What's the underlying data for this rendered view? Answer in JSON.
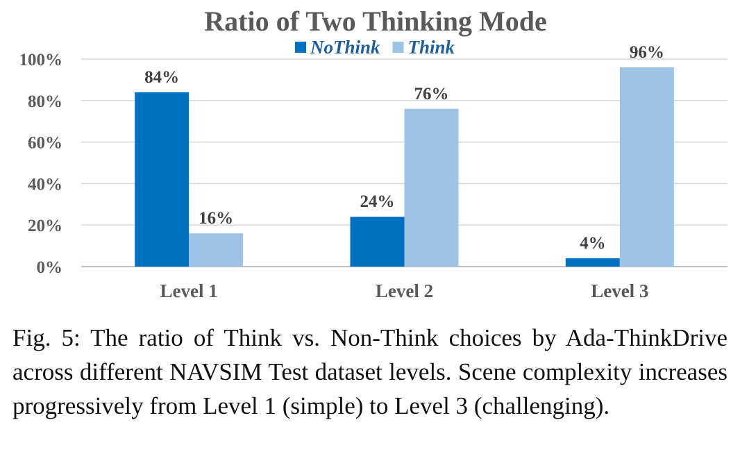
{
  "chart_data": {
    "type": "bar",
    "title": "Ratio of Two Thinking Mode",
    "categories": [
      "Level 1",
      "Level 2",
      "Level 3"
    ],
    "series": [
      {
        "name": "NoThink",
        "color": "#0070C0",
        "values": [
          84,
          24,
          4
        ],
        "labels": [
          "84%",
          "24%",
          "4%"
        ]
      },
      {
        "name": "Think",
        "color": "#9DC3E6",
        "values": [
          16,
          76,
          96
        ],
        "labels": [
          "16%",
          "76%",
          "96%"
        ]
      }
    ],
    "yticks": [
      "0%",
      "20%",
      "40%",
      "60%",
      "80%",
      "100%"
    ],
    "ylim": [
      0,
      100
    ],
    "grid": true,
    "legend": "top-center",
    "xlabel": "",
    "ylabel": ""
  },
  "caption": "Fig. 5: The ratio of Think vs. Non-Think choices by Ada-ThinkDrive across different NAVSIM Test dataset levels. Scene complexity increases progressively from Level 1 (simple) to Level 3 (challenging)."
}
